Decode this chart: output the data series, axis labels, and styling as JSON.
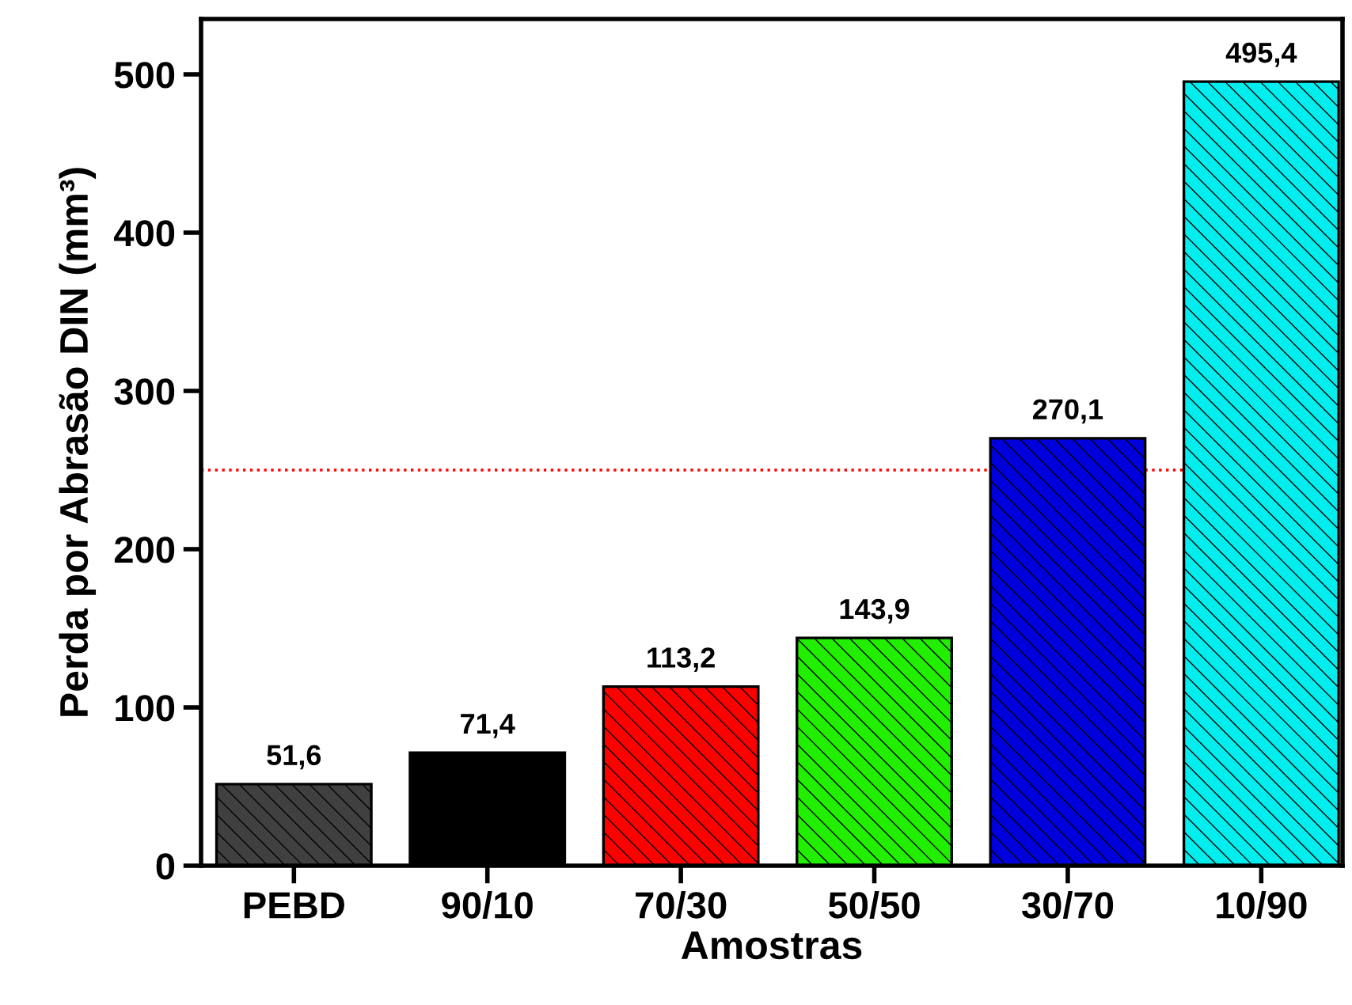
{
  "chart_data": {
    "type": "bar",
    "xlabel": "Amostras",
    "ylabel": "Perda por Abrasão DIN (mm³)",
    "categories": [
      "PEBD",
      "90/10",
      "70/30",
      "50/50",
      "30/70",
      "10/90"
    ],
    "values": [
      51.6,
      71.4,
      113.2,
      143.9,
      270.1,
      495.4
    ],
    "colors": [
      "#404040",
      "#000000",
      "#ff0000",
      "#22ee00",
      "#0000dd",
      "#00eeee"
    ],
    "value_labels": [
      "51,6",
      "71,4",
      "113,2",
      "143,9",
      "270,1",
      "495,4"
    ],
    "ylim": [
      0,
      535
    ],
    "yticks": [
      0,
      100,
      200,
      300,
      400,
      500
    ],
    "ref_lines": [
      {
        "axis": "y",
        "value": 250,
        "color": "#ff0000",
        "line_style": "dotted"
      }
    ],
    "grid": false,
    "legend": false
  }
}
